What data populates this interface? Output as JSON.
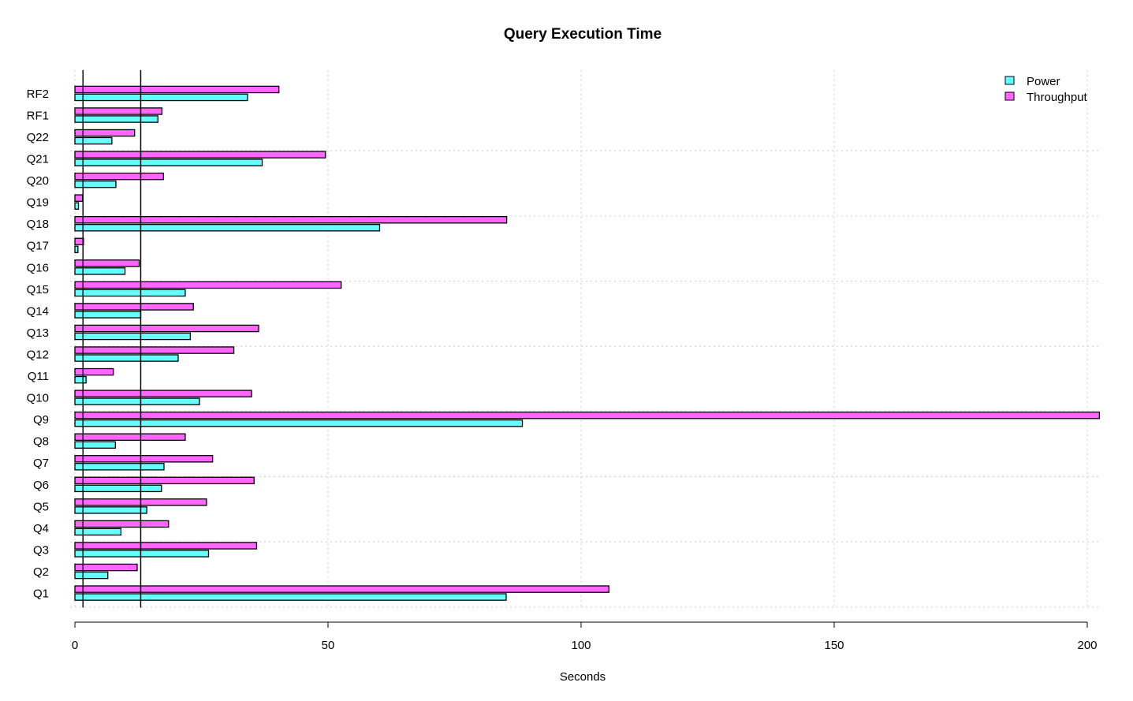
{
  "chart_data": {
    "type": "bar",
    "orientation": "horizontal",
    "title": "Query Execution Time",
    "xlabel": "Seconds",
    "ylabel": "",
    "xlim": [
      0,
      200
    ],
    "x_ticks": [
      "0",
      "50",
      "100",
      "150",
      "200"
    ],
    "categories": [
      "Q1",
      "Q2",
      "Q3",
      "Q4",
      "Q5",
      "Q6",
      "Q7",
      "Q8",
      "Q9",
      "Q10",
      "Q11",
      "Q12",
      "Q13",
      "Q14",
      "Q15",
      "Q16",
      "Q17",
      "Q18",
      "Q19",
      "Q20",
      "Q21",
      "Q22",
      "RF1",
      "RF2"
    ],
    "series": [
      {
        "name": "Power",
        "color": "#66ffff",
        "values": [
          85.2,
          6.5,
          26.4,
          9.1,
          14.2,
          17.1,
          17.6,
          8.0,
          88.4,
          24.6,
          2.2,
          20.4,
          22.8,
          13.0,
          21.8,
          9.9,
          0.6,
          60.2,
          0.7,
          8.1,
          37.0,
          7.3,
          16.4,
          34.1
        ]
      },
      {
        "name": "Throughput",
        "color": "#ff66ff",
        "values": [
          105.5,
          12.3,
          35.9,
          18.5,
          26.0,
          35.4,
          27.2,
          21.8,
          202.4,
          34.9,
          7.6,
          31.4,
          36.3,
          23.4,
          52.6,
          12.7,
          1.7,
          85.3,
          1.5,
          17.5,
          49.5,
          11.8,
          17.2,
          40.3
        ]
      }
    ],
    "reference_lines_x": [
      1.6,
      13.0
    ],
    "grid": true,
    "legend_position": "top-right"
  }
}
